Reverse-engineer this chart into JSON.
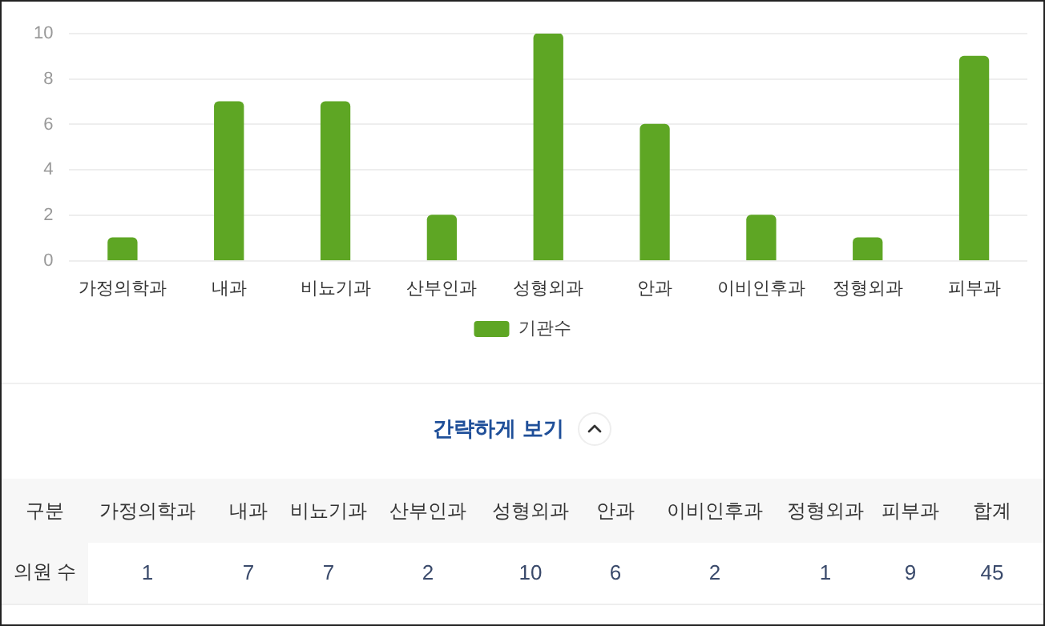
{
  "chart_data": [
    {
      "type": "bar",
      "categories": [
        "가정의학과",
        "내과",
        "비뇨기과",
        "산부인과",
        "성형외과",
        "안과",
        "이비인후과",
        "정형외과",
        "피부과"
      ],
      "series": [
        {
          "name": "기관수",
          "color": "#5ea624",
          "values": [
            1,
            7,
            7,
            2,
            10,
            6,
            2,
            1,
            9
          ]
        }
      ],
      "ylim": [
        0,
        10
      ],
      "yticks": [
        0,
        2,
        4,
        6,
        8,
        10
      ],
      "grid": "y",
      "legend": "bottom",
      "annotations": [
        "간략하게 보기"
      ]
    },
    {
      "type": "other",
      "categories": [
        "가정의학과",
        "내과",
        "비뇨기과",
        "산부인과",
        "성형외과",
        "안과",
        "이비인후과",
        "정형외과",
        "피부과",
        "합계"
      ],
      "values": [
        1,
        7,
        7,
        2,
        10,
        6,
        2,
        1,
        9,
        45
      ],
      "data_labels": true,
      "annotations": [
        "구분",
        "의원 수"
      ]
    }
  ]
}
